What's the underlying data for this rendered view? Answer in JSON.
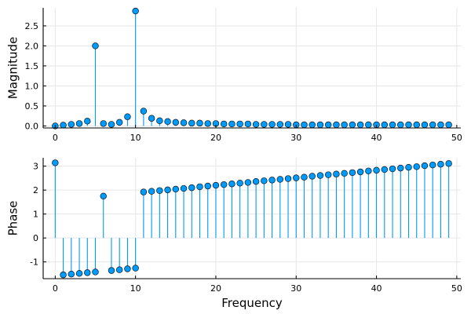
{
  "chart_data": [
    {
      "type": "stem",
      "title": "",
      "xlabel": "",
      "ylabel": "Magnitude",
      "xlim": [
        -1.5,
        50.5
      ],
      "ylim": [
        -0.05,
        2.95
      ],
      "xticks": [
        0,
        10,
        20,
        30,
        40,
        50
      ],
      "xtick_labels": [
        "0",
        "10",
        "20",
        "30",
        "40",
        "50"
      ],
      "yticks": [
        0.0,
        0.5,
        1.0,
        1.5,
        2.0,
        2.5
      ],
      "ytick_labels": [
        "0.0",
        "0.5",
        "1.0",
        "1.5",
        "2.0",
        "2.5"
      ],
      "grid": true,
      "baseline": 0,
      "series": [
        {
          "name": "Magnitude",
          "color": "#009AFA",
          "x": [
            0,
            1,
            2,
            3,
            4,
            5,
            6,
            7,
            8,
            9,
            10,
            11,
            12,
            13,
            14,
            15,
            16,
            17,
            18,
            19,
            20,
            21,
            22,
            23,
            24,
            25,
            26,
            27,
            28,
            29,
            30,
            31,
            32,
            33,
            34,
            35,
            36,
            37,
            38,
            39,
            40,
            41,
            42,
            43,
            44,
            45,
            46,
            47,
            48,
            49
          ],
          "values": [
            0.0,
            0.02,
            0.04,
            0.06,
            0.12,
            2.0,
            0.06,
            0.04,
            0.09,
            0.23,
            2.87,
            0.37,
            0.19,
            0.13,
            0.11,
            0.09,
            0.08,
            0.07,
            0.07,
            0.06,
            0.06,
            0.05,
            0.05,
            0.05,
            0.05,
            0.04,
            0.04,
            0.04,
            0.04,
            0.04,
            0.03,
            0.03,
            0.03,
            0.03,
            0.03,
            0.03,
            0.03,
            0.03,
            0.03,
            0.03,
            0.03,
            0.03,
            0.03,
            0.03,
            0.03,
            0.03,
            0.03,
            0.03,
            0.03,
            0.03
          ]
        }
      ]
    },
    {
      "type": "stem",
      "title": "",
      "xlabel": "Frequency",
      "ylabel": "Phase",
      "xlim": [
        -1.5,
        50.5
      ],
      "ylim": [
        -1.7,
        3.35
      ],
      "xticks": [
        0,
        10,
        20,
        30,
        40,
        50
      ],
      "xtick_labels": [
        "0",
        "10",
        "20",
        "30",
        "40",
        "50"
      ],
      "yticks": [
        -1,
        0,
        1,
        2,
        3
      ],
      "ytick_labels": [
        "-1",
        "0",
        "1",
        "2",
        "3"
      ],
      "grid": true,
      "baseline": 0,
      "series": [
        {
          "name": "Phase",
          "color": "#009AFA",
          "x": [
            0,
            1,
            2,
            3,
            4,
            5,
            6,
            7,
            8,
            9,
            10,
            11,
            12,
            13,
            14,
            15,
            16,
            17,
            18,
            19,
            20,
            21,
            22,
            23,
            24,
            25,
            26,
            27,
            28,
            29,
            30,
            31,
            32,
            33,
            34,
            35,
            36,
            37,
            38,
            39,
            40,
            41,
            42,
            43,
            44,
            45,
            46,
            47,
            48,
            49
          ],
          "values": [
            3.14,
            -1.54,
            -1.51,
            -1.48,
            -1.45,
            -1.42,
            1.75,
            -1.36,
            -1.33,
            -1.29,
            -1.26,
            1.92,
            1.95,
            1.98,
            2.01,
            2.04,
            2.07,
            2.1,
            2.14,
            2.17,
            2.2,
            2.23,
            2.26,
            2.29,
            2.32,
            2.36,
            2.39,
            2.42,
            2.45,
            2.48,
            2.51,
            2.54,
            2.58,
            2.61,
            2.64,
            2.67,
            2.7,
            2.73,
            2.76,
            2.8,
            2.83,
            2.86,
            2.89,
            2.92,
            2.95,
            2.98,
            3.02,
            3.05,
            3.08,
            3.11
          ]
        }
      ]
    }
  ]
}
